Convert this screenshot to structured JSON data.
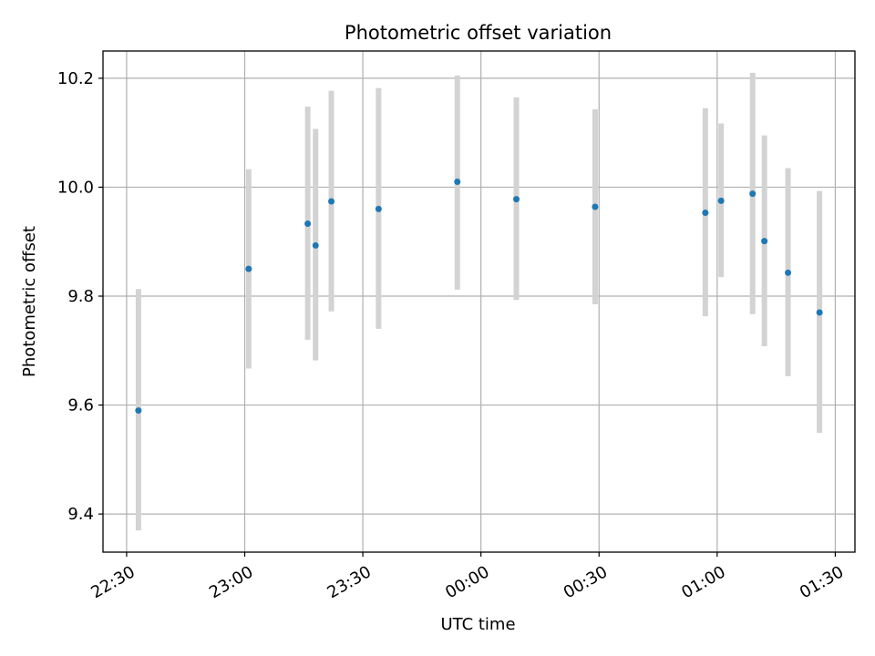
{
  "chart_data": {
    "type": "scatter",
    "title": "Photometric offset variation",
    "xlabel": "UTC time",
    "ylabel": "Photometric offset",
    "grid": true,
    "x_unit": "UTC time (HH:MM)",
    "xlim": [
      "22:24",
      "01:35"
    ],
    "ylim": [
      9.33,
      10.25
    ],
    "xticks": [
      "22:30",
      "23:00",
      "23:30",
      "00:00",
      "00:30",
      "01:00",
      "01:30"
    ],
    "yticks": [
      9.4,
      9.6,
      9.8,
      10.0,
      10.2
    ],
    "ytick_labels": [
      "9.4",
      "9.6",
      "9.8",
      "10.0",
      "10.2"
    ],
    "point_color": "#1f77b4",
    "errorbar_color": "#d3d3d3",
    "series": [
      {
        "x": [
          "22:33",
          "23:01",
          "23:16",
          "23:18",
          "23:22",
          "23:34",
          "23:54",
          "00:09",
          "00:29",
          "00:57",
          "01:01",
          "01:09",
          "01:12",
          "01:18",
          "01:26"
        ],
        "y": [
          9.59,
          9.85,
          9.933,
          9.893,
          9.974,
          9.96,
          10.01,
          9.978,
          9.964,
          9.953,
          9.975,
          9.988,
          9.901,
          9.843,
          9.77
        ],
        "yerr_low": [
          9.37,
          9.667,
          9.72,
          9.682,
          9.772,
          9.74,
          9.812,
          9.793,
          9.785,
          9.763,
          9.835,
          9.767,
          9.708,
          9.653,
          9.549
        ],
        "yerr_high": [
          9.813,
          10.033,
          10.148,
          10.107,
          10.177,
          10.182,
          10.205,
          10.165,
          10.143,
          10.145,
          10.117,
          10.21,
          10.095,
          10.035,
          9.993
        ]
      }
    ]
  }
}
